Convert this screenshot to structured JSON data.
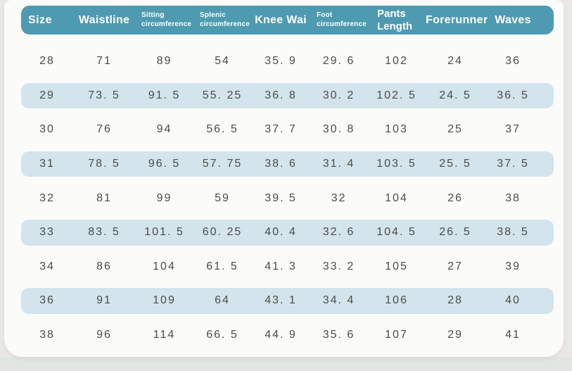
{
  "colors": {
    "header_bg": "#4e9ab0",
    "header_text": "#ffffff",
    "row_highlight": "#d3e4ec",
    "card_bg": "#fbfbf9",
    "page_bg": "#e9e8e5",
    "cell_text": "#4b4b4b"
  },
  "chart_data": {
    "type": "table",
    "title": "",
    "columns": [
      "Size",
      "Waistline",
      "Sitting\ncircumference",
      "Splenic\ncircumference",
      "Knee Wai",
      "Foot\ncircumference",
      "Pants\nLength",
      "Forerunner",
      "Waves"
    ],
    "column_styles": [
      "big-left",
      "big",
      "small",
      "small",
      "big",
      "small",
      "medium",
      "big",
      "big"
    ],
    "rows": [
      [
        "28",
        "71",
        "89",
        "54",
        "35. 9",
        "29. 6",
        "102",
        "24",
        "36"
      ],
      [
        "29",
        "73. 5",
        "91. 5",
        "55. 25",
        "36. 8",
        "30. 2",
        "102. 5",
        "24. 5",
        "36. 5"
      ],
      [
        "30",
        "76",
        "94",
        "56. 5",
        "37. 7",
        "30. 8",
        "103",
        "25",
        "37"
      ],
      [
        "31",
        "78. 5",
        "96. 5",
        "57. 75",
        "38. 6",
        "31. 4",
        "103. 5",
        "25. 5",
        "37. 5"
      ],
      [
        "32",
        "81",
        "99",
        "59",
        "39. 5",
        "32",
        "104",
        "26",
        "38"
      ],
      [
        "33",
        "83. 5",
        "101. 5",
        "60. 25",
        "40. 4",
        "32. 6",
        "104. 5",
        "26. 5",
        "38. 5"
      ],
      [
        "34",
        "86",
        "104",
        "61. 5",
        "41. 3",
        "33. 2",
        "105",
        "27",
        "39"
      ],
      [
        "36",
        "91",
        "109",
        "64",
        "43. 1",
        "34. 4",
        "106",
        "28",
        "40"
      ],
      [
        "38",
        "96",
        "114",
        "66. 5",
        "44. 9",
        "35. 6",
        "107",
        "29",
        "41"
      ]
    ],
    "highlighted_rows": [
      1,
      3,
      5,
      7
    ],
    "layout": {
      "grid": false,
      "legend": "none"
    }
  }
}
